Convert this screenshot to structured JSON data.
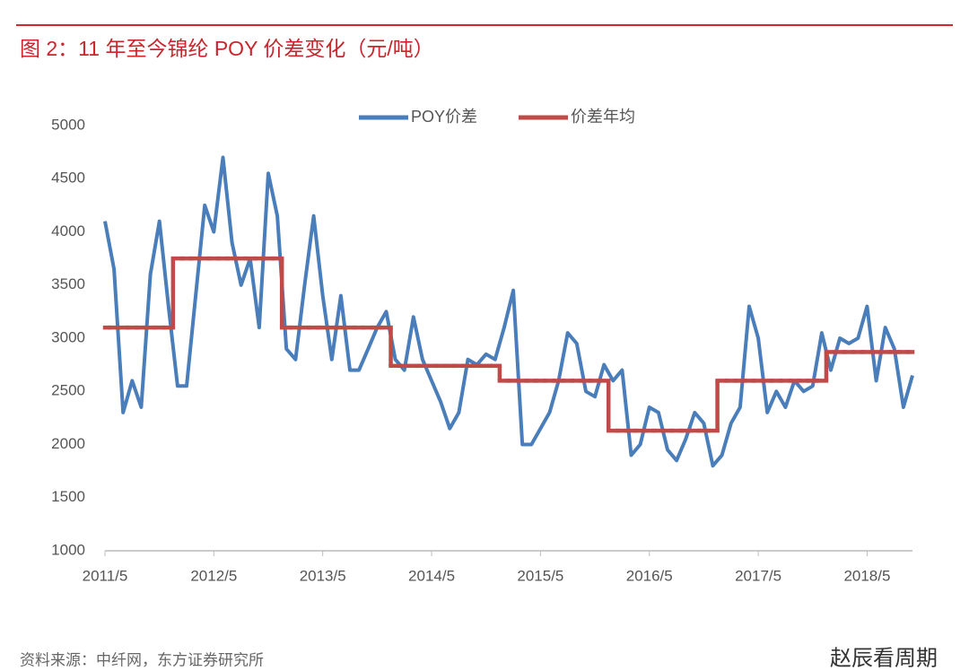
{
  "chart_data": {
    "type": "line",
    "title": "图 2：11 年至今锦纶 POY 价差变化（元/吨）",
    "source": "资料来源：中纤网，东方证券研究所",
    "watermark": "赵辰看周期",
    "categories": [
      "2011/5",
      null,
      null,
      null,
      null,
      null,
      null,
      null,
      null,
      null,
      null,
      null,
      "2012/5",
      null,
      null,
      null,
      null,
      null,
      null,
      null,
      null,
      null,
      null,
      null,
      "2013/5",
      null,
      null,
      null,
      null,
      null,
      null,
      null,
      null,
      null,
      null,
      null,
      "2014/5",
      null,
      null,
      null,
      null,
      null,
      null,
      null,
      null,
      null,
      null,
      null,
      "2015/5",
      null,
      null,
      null,
      null,
      null,
      null,
      null,
      null,
      null,
      null,
      null,
      "2016/5",
      null,
      null,
      null,
      null,
      null,
      null,
      null,
      null,
      null,
      null,
      null,
      "2017/5",
      null,
      null,
      null,
      null,
      null,
      null,
      null,
      null,
      null,
      null,
      null,
      "2018/5",
      null,
      null,
      null,
      null,
      null
    ],
    "series": [
      {
        "name": "POY价差",
        "color": "#4a7ebb",
        "style": "line",
        "values": [
          4100,
          3650,
          2300,
          2600,
          2350,
          3600,
          4100,
          3300,
          2550,
          2550,
          3400,
          4250,
          4000,
          4700,
          3900,
          3500,
          3750,
          3100,
          4550,
          4150,
          2900,
          2800,
          3500,
          4150,
          3400,
          2800,
          3400,
          2700,
          2700,
          2900,
          3100,
          3250,
          2800,
          2700,
          3200,
          2800,
          2600,
          2400,
          2150,
          2300,
          2800,
          2750,
          2850,
          2800,
          3100,
          3450,
          2000,
          2000,
          2150,
          2300,
          2600,
          3050,
          2950,
          2500,
          2450,
          2750,
          2600,
          2700,
          1900,
          2000,
          2350,
          2300,
          1950,
          1850,
          2050,
          2300,
          2200,
          1800,
          1900,
          2200,
          2350,
          3300,
          3000,
          2300,
          2500,
          2350,
          2600,
          2500,
          2550,
          3050,
          2700,
          3000,
          2950,
          3000,
          3300,
          2600,
          3100,
          2900,
          2350,
          2650
        ]
      },
      {
        "name": "价差年均",
        "color": "#be4b48",
        "style": "step",
        "values": [
          3100,
          3100,
          3100,
          3100,
          3100,
          3100,
          3100,
          3100,
          3750,
          3750,
          3750,
          3750,
          3750,
          3750,
          3750,
          3750,
          3750,
          3750,
          3750,
          3750,
          3100,
          3100,
          3100,
          3100,
          3100,
          3100,
          3100,
          3100,
          3100,
          3100,
          3100,
          3100,
          2740,
          2740,
          2740,
          2740,
          2740,
          2740,
          2740,
          2740,
          2740,
          2740,
          2740,
          2740,
          2600,
          2600,
          2600,
          2600,
          2600,
          2600,
          2600,
          2600,
          2600,
          2600,
          2600,
          2600,
          2130,
          2130,
          2130,
          2130,
          2130,
          2130,
          2130,
          2130,
          2130,
          2130,
          2130,
          2130,
          2600,
          2600,
          2600,
          2600,
          2600,
          2600,
          2600,
          2600,
          2600,
          2600,
          2600,
          2600,
          2870,
          2870,
          2870,
          2870,
          2870,
          2870,
          2870,
          2870,
          2870,
          2870
        ]
      }
    ],
    "ylim": [
      1000,
      5000
    ],
    "yticks": [
      1000,
      1500,
      2000,
      2500,
      3000,
      3500,
      4000,
      4500,
      5000
    ],
    "grid": false,
    "legend": "top"
  }
}
